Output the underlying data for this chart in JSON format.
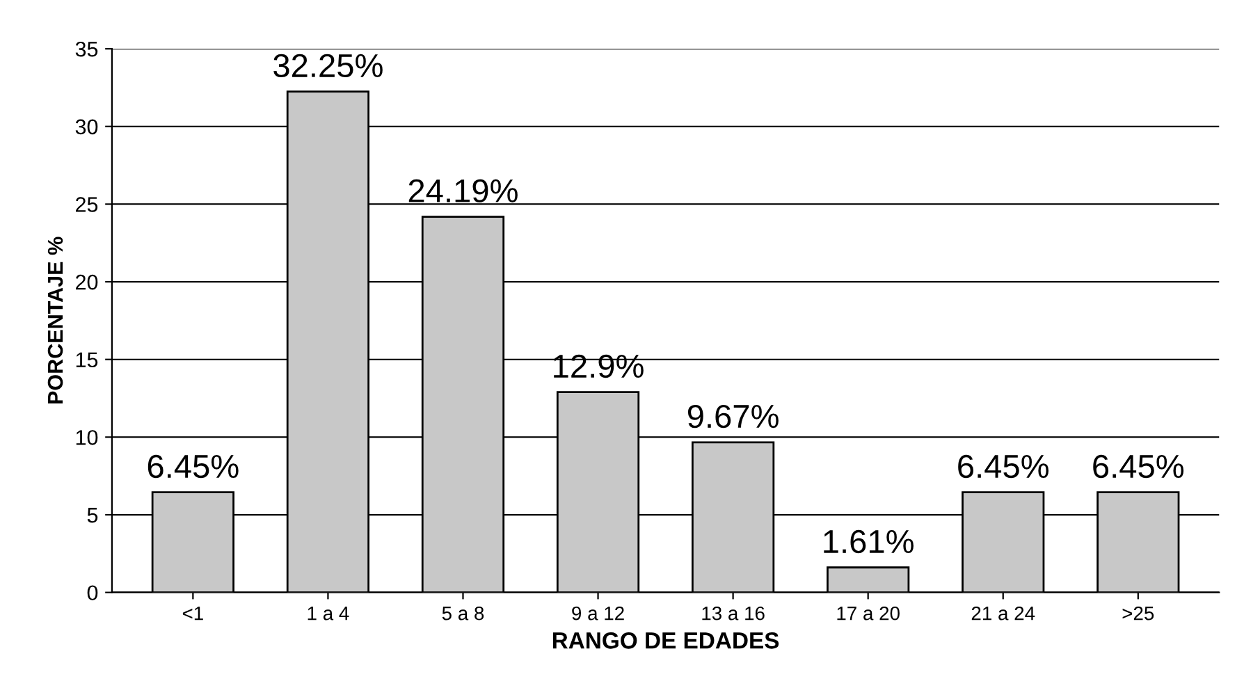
{
  "chart_data": {
    "type": "bar",
    "xlabel": "RANGO DE EDADES",
    "ylabel": "PORCENTAJE %",
    "categories": [
      "<1",
      "1 a 4",
      "5 a 8",
      "9 a 12",
      "13 a 16",
      "17 a 20",
      "21 a 24",
      ">25"
    ],
    "values": [
      6.45,
      32.25,
      24.19,
      12.9,
      9.67,
      1.61,
      6.45,
      6.45
    ],
    "value_labels": [
      "6.45%",
      "32.25%",
      "24.19%",
      "12.9%",
      "9.67%",
      "1.61%",
      "6.45%",
      "6.45%"
    ],
    "color": "#c8c8c8",
    "ylim": [
      0,
      35
    ],
    "yticks": [
      0,
      5,
      10,
      15,
      20,
      25,
      30,
      35
    ],
    "grid": "y",
    "legend": false
  }
}
